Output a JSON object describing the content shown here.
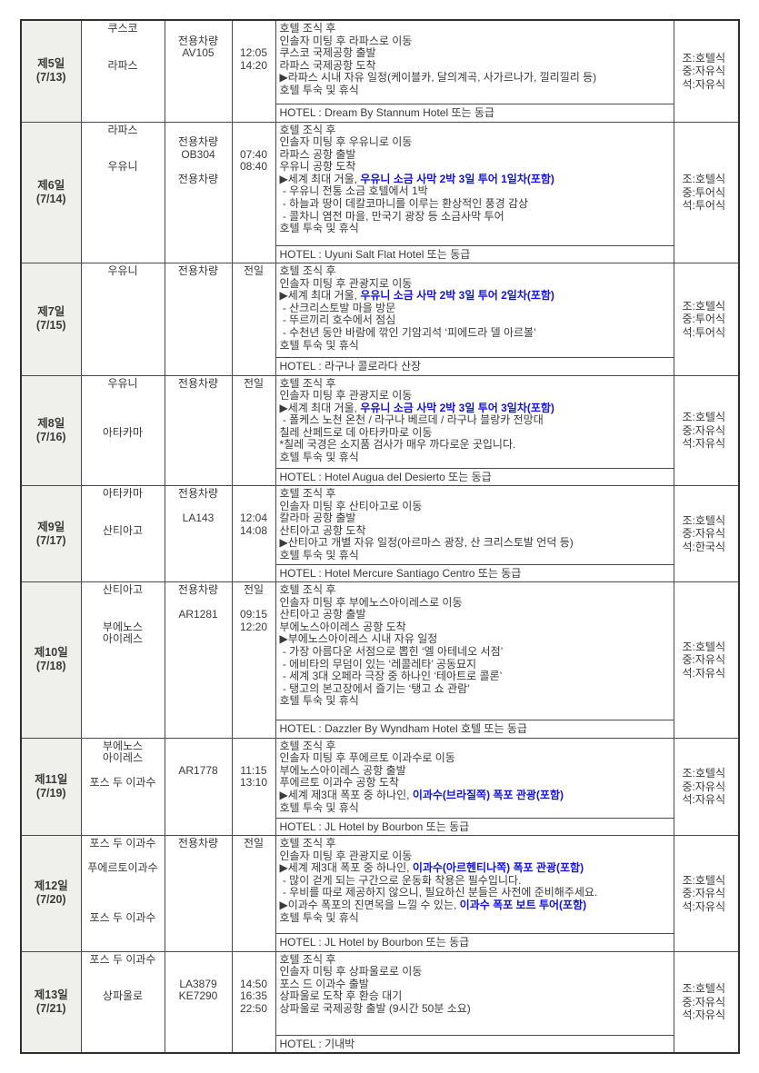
{
  "colors": {
    "accent_blue": "#1414dd",
    "day_cell_bg": "#efefec",
    "border": "#4a4a4a",
    "text": "#3a3a3a"
  },
  "itinerary": {
    "rows": [
      {
        "day": "제5일",
        "date": "(7/13)",
        "city_lines": [
          "쿠스코",
          "",
          "",
          "라파스"
        ],
        "vehicle_lines": [
          "",
          "전용차량",
          "AV105"
        ],
        "time_lines": [
          "",
          "",
          "12:05",
          "14:20"
        ],
        "details": [
          [
            "호텔 조식 후"
          ],
          [
            "인솔자 미팅 후 라파스로 이동"
          ],
          [
            "쿠스코 국제공항 출발"
          ],
          [
            "라파스 국제공항 도착"
          ],
          [
            "▶라파스 시내 자유 일정(케이블카, 달의계곡, 사가르나가, 낄리낄리 등)"
          ],
          [
            "호텔 투숙 및 휴식"
          ]
        ],
        "hotel": "HOTEL : Dream By Stannum Hotel 또는 동급",
        "meals": [
          "조:호텔식",
          "중:자유식",
          "석:자유식"
        ]
      },
      {
        "day": "제6일",
        "date": "(7/14)",
        "city_lines": [
          "라파스",
          "",
          "",
          "우유니"
        ],
        "vehicle_lines": [
          "",
          "전용차량",
          "OB304",
          "",
          "전용차량"
        ],
        "time_lines": [
          "",
          "",
          "07:40",
          "08:40"
        ],
        "details": [
          [
            "호텔 조식 후"
          ],
          [
            "인솔자 미팅 후 우유니로 이동"
          ],
          [
            "라파스 공항 출발"
          ],
          [
            "우유니 공항 도착"
          ],
          [
            "▶세계 최대 거울, ",
            {
              "t": "우유니 소금 사막 2박 3일 투어 1일차(포함)",
              "blue": true
            }
          ],
          [
            " - 우유니 전통 소금 호텔에서 1박"
          ],
          [
            " - 하늘과 땅이 데칼코마니를 이루는 환상적인 풍경 감상"
          ],
          [
            " - 콜차니 염전 마을, 만국기 광장 등 소금사막 투어"
          ],
          [
            "호텔 투숙 및 휴식"
          ]
        ],
        "hotel": "HOTEL : Uyuni Salt Flat Hotel 또는 동급",
        "meals": [
          "조:호텔식",
          "중:투어식",
          "석:투어식"
        ]
      },
      {
        "day": "제7일",
        "date": "(7/15)",
        "city_lines": [
          "우유니"
        ],
        "vehicle_lines": [
          "전용차량"
        ],
        "time_lines": [
          "전일"
        ],
        "details": [
          [
            "호텔 조식 후"
          ],
          [
            "인솔자 미팅 후 관광지로 이동"
          ],
          [
            "▶세계 최대 거울, ",
            {
              "t": "우유니 소금 사막 2박 3일 투어 2일차(포함)",
              "blue": true
            }
          ],
          [
            " - 산크리스토발 마을 방문"
          ],
          [
            " - 뚜르끼리 호수에서 점심"
          ],
          [
            " - 수천년 동안 바람에 깎인 기암괴석 ‘피에드라 델 아르볼’"
          ],
          [
            "호텔 투숙 및 휴식"
          ]
        ],
        "hotel": "HOTEL : 라구나 콜로라다 산장",
        "meals": [
          "조:호텔식",
          "중:투어식",
          "석:투어식"
        ]
      },
      {
        "day": "제8일",
        "date": "(7/16)",
        "city_lines": [
          "우유니",
          "",
          "",
          "",
          "아타카마"
        ],
        "vehicle_lines": [
          "전용차량"
        ],
        "time_lines": [
          "전일"
        ],
        "details": [
          [
            "호텔 조식 후"
          ],
          [
            "인솔자 미팅 후 관광지로 이동"
          ],
          [
            "▶세계 최대 거울, ",
            {
              "t": "우유니 소금 사막 2박 3일 투어 3일차(포함)",
              "blue": true
            }
          ],
          [
            " - 폴케스 노천 온천 / 라구나 베르데 / 라구나 블랑카 전망대"
          ],
          [
            "칠레 산페드로 데 아타카마로 이동"
          ],
          [
            "*칠레 국경은 소지품 검사가 매우 까다로운 곳입니다."
          ],
          [
            "호텔 투숙 및 휴식"
          ]
        ],
        "hotel": "HOTEL : Hotel Augua del Desierto 또는 동급",
        "meals": [
          "조:호텔식",
          "중:자유식",
          "석:자유식"
        ]
      },
      {
        "day": "제9일",
        "date": "(7/17)",
        "city_lines": [
          "아타카마",
          "",
          "",
          "산티아고"
        ],
        "vehicle_lines": [
          "전용차량",
          "",
          "LA143"
        ],
        "time_lines": [
          "",
          "",
          "12:04",
          "14:08"
        ],
        "details": [
          [
            "호텔 조식 후"
          ],
          [
            "인솔자 미팅 후 산티아고로 이동"
          ],
          [
            "칼라마 공항 출발"
          ],
          [
            "산티아고 공항 도착"
          ],
          [
            "▶산티아고 개별 자유 일정(아르마스 광장, 산 크리스토발 언덕 등)"
          ],
          [
            "호텔 투숙 및 휴식"
          ]
        ],
        "hotel": "HOTEL : Hotel Mercure Santiago Centro 또는 동급",
        "meals": [
          "조:호텔식",
          "중:자유식",
          "석:한국식"
        ]
      },
      {
        "day": "제10일",
        "date": "(7/18)",
        "city_lines": [
          "산티아고",
          "",
          "",
          "부에노스",
          "아이레스"
        ],
        "vehicle_lines": [
          "전용차량",
          "",
          "AR1281"
        ],
        "time_lines": [
          "전일",
          "",
          "09:15",
          "12:20"
        ],
        "details": [
          [
            "호텔 조식 후"
          ],
          [
            "인솔자 미팅 후 부에노스아이레스로 이동"
          ],
          [
            "산티아고 공항 출발"
          ],
          [
            "부에노스아이레스 공항 도착"
          ],
          [
            "▶부에노스아이레스 시내 자유 일정"
          ],
          [
            " - 가장 아름다운 서점으로 뽑힌 ‘엘 아테네오 서점’"
          ],
          [
            " - 에비타의 무덤이 있는 ‘레콜레타’ 공동묘지"
          ],
          [
            " - 세계 3대 오페라 극장 중 하나인 ‘테아트로 콜론’"
          ],
          [
            " - 탱고의 본고장에서 즐기는 ‘탱고 쇼 관람’"
          ],
          [
            "호텔 투숙 및 휴식"
          ]
        ],
        "hotel": "HOTEL : Dazzler By Wyndham Hotel 호텔 또는 동급",
        "meals": [
          "조:호텔식",
          "중:자유식",
          "석:자유식"
        ]
      },
      {
        "day": "제11일",
        "date": "(7/19)",
        "city_lines": [
          "부에노스",
          "아이레스",
          "",
          "포스 두 이과수"
        ],
        "vehicle_lines": [
          "",
          "",
          "AR1778"
        ],
        "time_lines": [
          "",
          "",
          "11:15",
          "13:10"
        ],
        "details": [
          [
            "호텔 조식 후"
          ],
          [
            "인솔자 미팅 후 푸에르토 이과수로 이동"
          ],
          [
            "부에노스아이레스 공항 출발"
          ],
          [
            "푸에르토 이과수 공항 도착"
          ],
          [
            "▶세계 제3대 폭포 중 하나인, ",
            {
              "t": "이과수(브라질쪽) 폭포 관광(포함)",
              "blue": true
            }
          ],
          [
            "호텔 투숙 및 휴식"
          ]
        ],
        "hotel": "HOTEL : JL Hotel by Bourbon 또는 동급",
        "meals": [
          "조:호텔식",
          "중:자유식",
          "석:자유식"
        ]
      },
      {
        "day": "제12일",
        "date": "(7/20)",
        "city_lines": [
          "포스 두 이과수",
          "",
          "푸에르토이과수",
          "",
          "",
          "",
          "포스 두 이과수"
        ],
        "vehicle_lines": [
          "전용차량"
        ],
        "time_lines": [
          "전일"
        ],
        "details": [
          [
            "호텔 조식 후"
          ],
          [
            "인솔자 미팅 후 관광지로 이동"
          ],
          [
            "▶세계 제3대 폭포 중 하나인, ",
            {
              "t": "이과수(아르헨티나쪽) 폭포 관광(포함)",
              "blue": true
            }
          ],
          [
            " - 많이 걷게 되는 구간으로 운동화 착용은 필수입니다."
          ],
          [
            " - 우비를 따로 제공하지 않으니, 필요하신 분들은 사전에 준비해주세요."
          ],
          [
            "▶이과수 폭포의 진면목을 느낄 수 있는, ",
            {
              "t": "이과수 폭포 보트 투어(포함)",
              "blue": true
            }
          ],
          [
            "호텔 투숙 및 휴식"
          ]
        ],
        "hotel": "HOTEL : JL Hotel by Bourbon 또는 동급",
        "meals": [
          "조:호텔식",
          "중:자유식",
          "석:자유식"
        ]
      },
      {
        "day": "제13일",
        "date": "(7/21)",
        "city_lines": [
          "포스 두 이과수",
          "",
          "",
          "상파울로"
        ],
        "vehicle_lines": [
          "",
          "",
          "LA3879",
          "KE7290"
        ],
        "time_lines": [
          "",
          "",
          "14:50",
          "16:35",
          "22:50"
        ],
        "details": [
          [
            "호텔 조식 후"
          ],
          [
            "인솔자 미팅 후 상파울로로 이동"
          ],
          [
            "포스 드 이과수 출발"
          ],
          [
            "상파울로 도착 후 환승 대기"
          ],
          [
            "상파울로 국제공항 출발 (9시간 50분 소요)"
          ]
        ],
        "hotel": "HOTEL : 기내박",
        "meals": [
          "조:호텔식",
          "중:자유식",
          "석:자유식"
        ]
      }
    ]
  }
}
